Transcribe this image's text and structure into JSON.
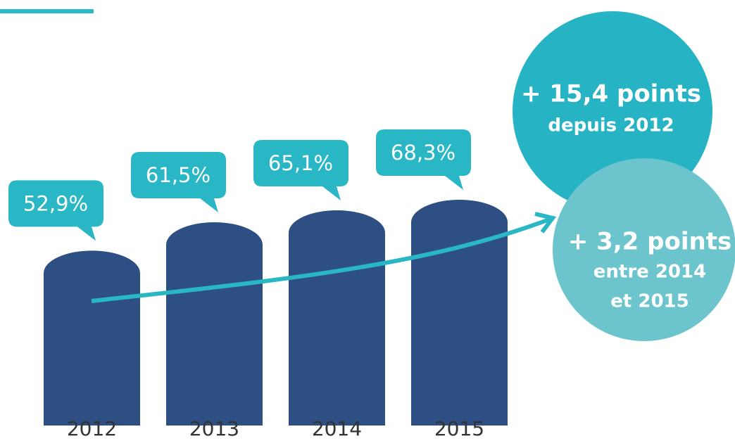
{
  "chart_data": {
    "type": "bar",
    "categories": [
      "2012",
      "2013",
      "2014",
      "2015"
    ],
    "values": [
      52.9,
      61.5,
      65.1,
      68.3
    ],
    "value_labels": [
      "52,9%",
      "61,5%",
      "65,1%",
      "68,3%"
    ],
    "color": "#2e4f84",
    "label_color": "#29b6c5",
    "annotations": [
      {
        "lines": [
          "+ 15,4 points",
          "depuis 2012"
        ],
        "color": "#26b3c4"
      },
      {
        "lines": [
          "+ 3,2 points",
          "entre 2014",
          "et 2015"
        ],
        "color": "#6cc5cc"
      }
    ]
  }
}
